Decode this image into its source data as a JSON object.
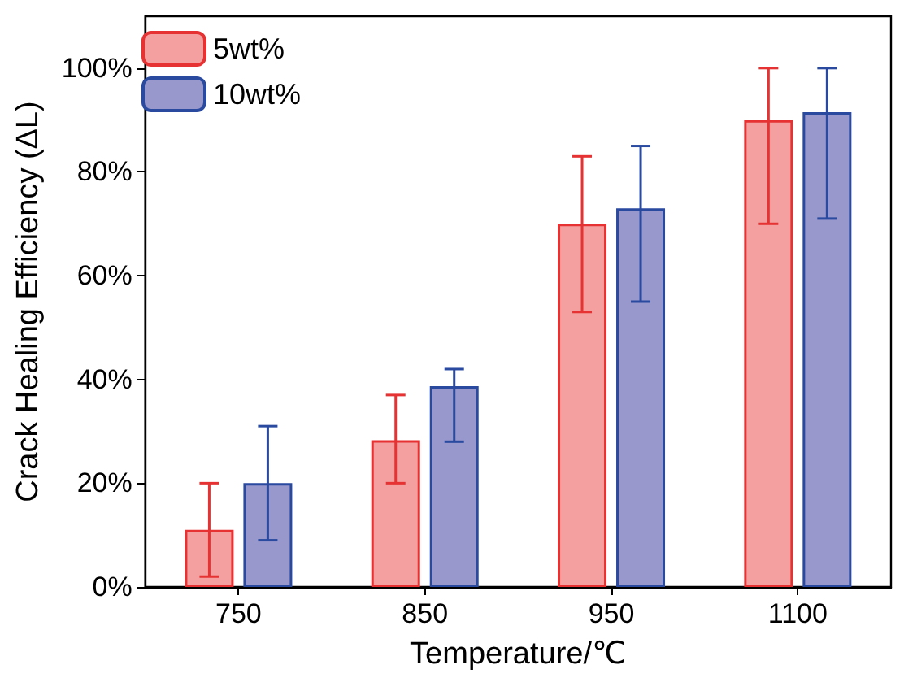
{
  "chart_data": {
    "type": "bar",
    "xlabel": "Temperature/℃",
    "ylabel": "Crack Healing Efficiency (ΔL)",
    "categories": [
      "750",
      "850",
      "950",
      "1100"
    ],
    "series": [
      {
        "name": "5wt%",
        "color": "#f4a0a0",
        "values": [
          11,
          28.3,
          70,
          90
        ],
        "errors": [
          [
            2,
            20
          ],
          [
            20,
            37
          ],
          [
            53,
            83
          ],
          [
            70,
            100
          ]
        ]
      },
      {
        "name": "10wt%",
        "color": "#9898cc",
        "values": [
          20,
          38.7,
          73,
          91.5
        ],
        "errors": [
          [
            9,
            31
          ],
          [
            28,
            42
          ],
          [
            55,
            85
          ],
          [
            71,
            100
          ]
        ]
      }
    ],
    "ylim": [
      0,
      110
    ],
    "yticks": [
      {
        "value": 0,
        "label": "0%"
      },
      {
        "value": 20,
        "label": "20%"
      },
      {
        "value": 40,
        "label": "40%"
      },
      {
        "value": 60,
        "label": "60%"
      },
      {
        "value": 80,
        "label": "80%"
      },
      {
        "value": 100,
        "label": "100%"
      }
    ],
    "grid": false,
    "legend": "top left"
  }
}
